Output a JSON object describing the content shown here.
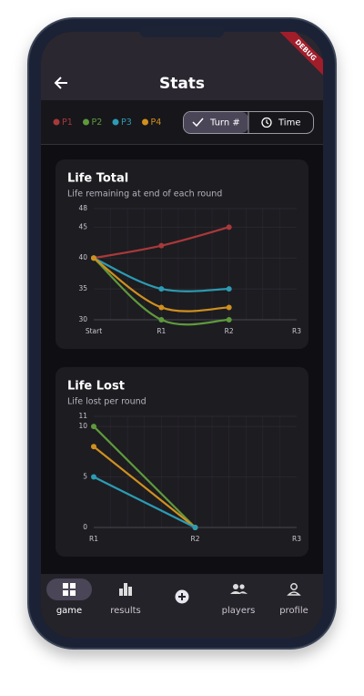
{
  "app_bar": {
    "title": "Stats"
  },
  "debug_banner": "DEBUG",
  "toggle": {
    "options": [
      "Turn #",
      "Time"
    ],
    "selected": 0
  },
  "chart_data": [
    {
      "type": "line",
      "title": "Life Total",
      "subtitle": "Life remaining at end of each round",
      "curved": true,
      "grid": true,
      "categories": [
        "Start",
        "R1",
        "R2",
        "R3"
      ],
      "series": [
        {
          "name": "P1",
          "color": "#a8393a",
          "values": [
            40,
            42,
            45,
            null
          ]
        },
        {
          "name": "P2",
          "color": "#5e9a3c",
          "values": [
            40,
            30,
            30,
            null
          ]
        },
        {
          "name": "P3",
          "color": "#2c9bb3",
          "values": [
            40,
            35,
            35,
            null
          ]
        },
        {
          "name": "P4",
          "color": "#d0901e",
          "values": [
            40,
            32,
            32,
            null
          ]
        }
      ],
      "ylim": [
        30,
        48
      ],
      "yticks": [
        30,
        35,
        40,
        45,
        48
      ]
    },
    {
      "type": "line",
      "title": "Life Lost",
      "subtitle": "Life lost per round",
      "curved": false,
      "grid": true,
      "categories": [
        "R1",
        "R2",
        "R3"
      ],
      "series": [
        {
          "name": "P2",
          "color": "#5e9a3c",
          "values": [
            10,
            0,
            null
          ]
        },
        {
          "name": "P4",
          "color": "#d0901e",
          "values": [
            8,
            0,
            null
          ]
        },
        {
          "name": "P3",
          "color": "#2c9bb3",
          "values": [
            5,
            0,
            null
          ]
        }
      ],
      "ylim": [
        0,
        11
      ],
      "yticks": [
        0,
        5,
        10,
        11
      ]
    }
  ],
  "nav": {
    "items": [
      {
        "label": "game",
        "selected": true
      },
      {
        "label": "results",
        "selected": false
      },
      {
        "label": "players",
        "selected": false
      },
      {
        "label": "profile",
        "selected": false
      }
    ]
  }
}
